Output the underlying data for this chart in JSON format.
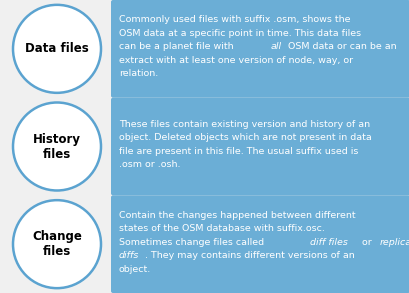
{
  "background_color": "#f0f0f0",
  "circle_edge_color": "#5ba3d0",
  "circle_face_color": "#ffffff",
  "box_color": "#6baed6",
  "box_text_color": "#ffffff",
  "circle_text_color": "#000000",
  "figsize": [
    4.1,
    2.93
  ],
  "dpi": 100,
  "rows": [
    {
      "label": "Data files",
      "lines": [
        {
          "parts": [
            {
              "text": "Commonly used files with suffix .osm, shows the",
              "italic": false
            }
          ]
        },
        {
          "parts": [
            {
              "text": "OSM data at a specific point in time. This data files",
              "italic": false
            }
          ]
        },
        {
          "parts": [
            {
              "text": "can be a planet file with ",
              "italic": false
            },
            {
              "text": "all",
              "italic": true
            },
            {
              "text": " OSM data or can be an",
              "italic": false
            }
          ]
        },
        {
          "parts": [
            {
              "text": "extract with at least one version of node, way, or",
              "italic": false
            }
          ]
        },
        {
          "parts": [
            {
              "text": "relation.",
              "italic": false
            }
          ]
        }
      ]
    },
    {
      "label": "History\nfiles",
      "lines": [
        {
          "parts": [
            {
              "text": "These files contain existing version and history of an",
              "italic": false
            }
          ]
        },
        {
          "parts": [
            {
              "text": "object. Deleted objects which are not present in data",
              "italic": false
            }
          ]
        },
        {
          "parts": [
            {
              "text": "file are present in this file. The usual suffix used is",
              "italic": false
            }
          ]
        },
        {
          "parts": [
            {
              "text": ".osm or .osh.",
              "italic": false
            }
          ]
        }
      ]
    },
    {
      "label": "Change\nfiles",
      "lines": [
        {
          "parts": [
            {
              "text": "Contain the changes happened between different",
              "italic": false
            }
          ]
        },
        {
          "parts": [
            {
              "text": "states of the OSM database with suffix.osc.",
              "italic": false
            }
          ]
        },
        {
          "parts": [
            {
              "text": "Sometimes change files called ",
              "italic": false
            },
            {
              "text": "diff files",
              "italic": true
            },
            {
              "text": " or ",
              "italic": false
            },
            {
              "text": "replication",
              "italic": true
            }
          ]
        },
        {
          "parts": [
            {
              "text": "diffs",
              "italic": true
            },
            {
              "text": ". They may contains different versions of an",
              "italic": false
            }
          ]
        },
        {
          "parts": [
            {
              "text": "object.",
              "italic": false
            }
          ]
        }
      ]
    }
  ]
}
